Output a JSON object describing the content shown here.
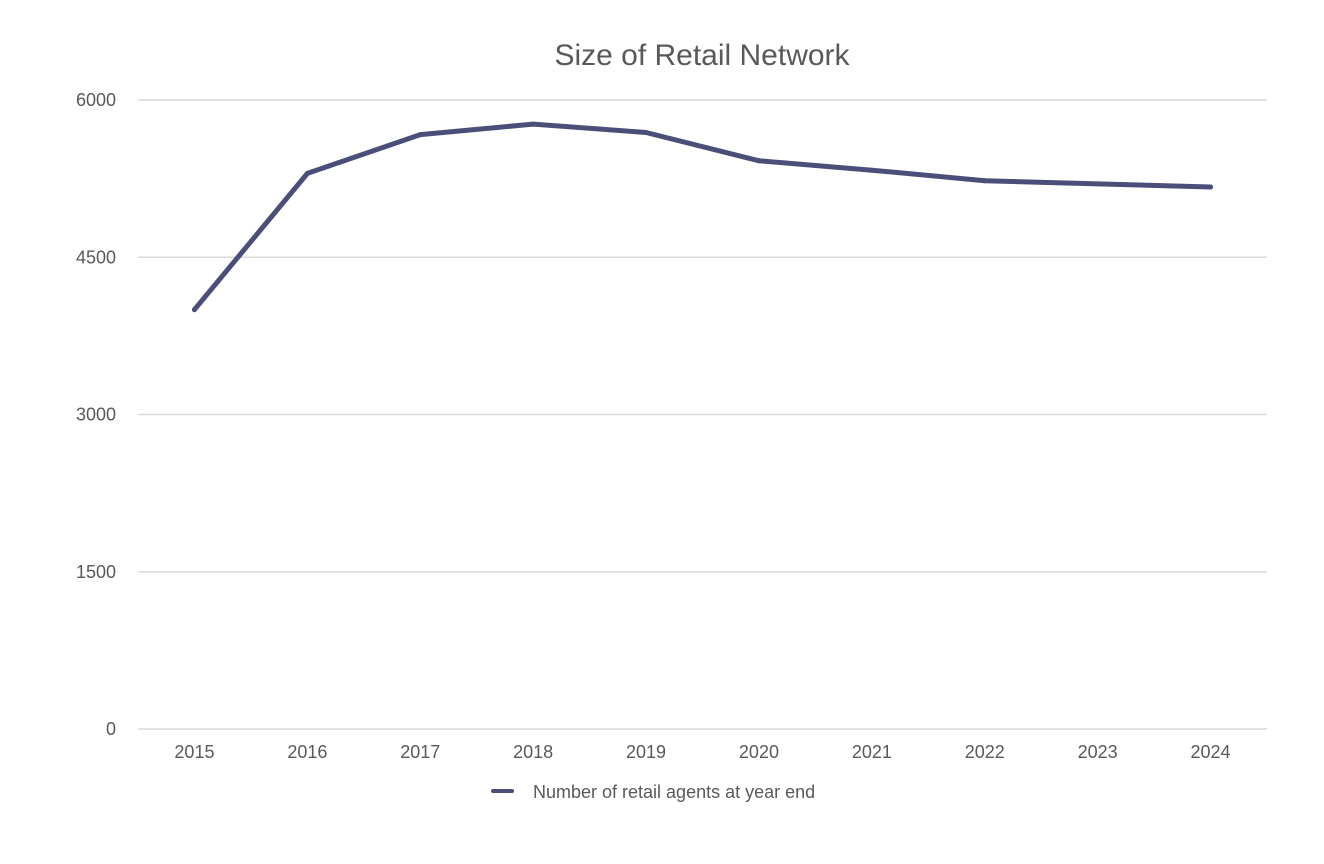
{
  "chart_data": {
    "type": "line",
    "title": "Size of Retail Network",
    "xlabel": "",
    "ylabel": "",
    "x": [
      "2015",
      "2016",
      "2017",
      "2018",
      "2019",
      "2020",
      "2021",
      "2022",
      "2023",
      "2024"
    ],
    "y_ticks": [
      "0",
      "1500",
      "3000",
      "4500",
      "6000"
    ],
    "ylim": [
      0,
      6000
    ],
    "grid": true,
    "legend_position": "bottom",
    "series": [
      {
        "name": "Number of retail agents at year end",
        "color": "#4a4f7a",
        "values": [
          4000,
          5300,
          5670,
          5770,
          5690,
          5420,
          5330,
          5230,
          5200,
          5170
        ]
      }
    ]
  }
}
